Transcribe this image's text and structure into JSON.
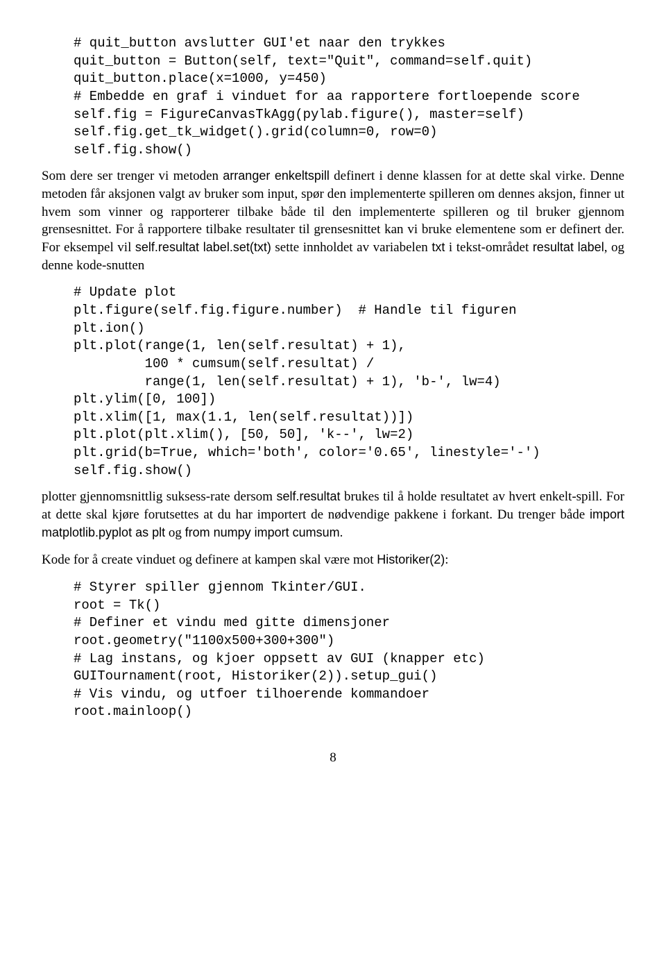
{
  "code1": "# quit_button avslutter GUI'et naar den trykkes\nquit_button = Button(self, text=\"Quit\", command=self.quit)\nquit_button.place(x=1000, y=450)\n# Embedde en graf i vinduet for aa rapportere fortloepende score\nself.fig = FigureCanvasTkAgg(pylab.figure(), master=self)\nself.fig.get_tk_widget().grid(column=0, row=0)\nself.fig.show()",
  "p1_a": "Som dere ser trenger vi metoden ",
  "p1_sf1": "arranger enkeltspill",
  "p1_b": " definert i denne klassen for at dette skal virke. Denne metoden får aksjonen valgt av bruker som input, spør den implementerte spilleren om dennes aksjon, finner ut hvem som vinner og rapporterer tilbake både til den implementerte spilleren og til bruker gjennom grensesnittet. For å rapportere tilbake resultater til grensesnittet kan vi bruke elementene som er definert der. For eksempel vil ",
  "p1_sf2": "self.resultat label.set(txt)",
  "p1_c": " sette innholdet av variabelen ",
  "p1_sf3": "txt",
  "p1_d": " i tekst-området ",
  "p1_sf4": "resultat label",
  "p1_e": ", og denne kode-snutten",
  "code2": "# Update plot\nplt.figure(self.fig.figure.number)  # Handle til figuren\nplt.ion()\nplt.plot(range(1, len(self.resultat) + 1),\n         100 * cumsum(self.resultat) /\n         range(1, len(self.resultat) + 1), 'b-', lw=4)\nplt.ylim([0, 100])\nplt.xlim([1, max(1.1, len(self.resultat))])\nplt.plot(plt.xlim(), [50, 50], 'k--', lw=2)\nplt.grid(b=True, which='both', color='0.65', linestyle='-')\nself.fig.show()",
  "p2_a": "plotter gjennomsnittlig suksess-rate dersom ",
  "p2_sf1": "self.resultat",
  "p2_b": " brukes til å holde resultatet av hvert enkelt-spill. For at dette skal kjøre forutsettes at du har importert de nødvendige pakkene i forkant. Du trenger både ",
  "p2_sf2": "import matplotlib.pyplot as plt",
  "p2_c": " og ",
  "p2_sf3": "from numpy import cumsum",
  "p2_d": ".",
  "p3_a": "Kode for å create vinduet og definere at kampen skal være mot ",
  "p3_sf1": "Historiker(2)",
  "p3_b": ":",
  "code3": "# Styrer spiller gjennom Tkinter/GUI.\nroot = Tk()\n# Definer et vindu med gitte dimensjoner\nroot.geometry(\"1100x500+300+300\")\n# Lag instans, og kjoer oppsett av GUI (knapper etc)\nGUITournament(root, Historiker(2)).setup_gui()\n# Vis vindu, og utfoer tilhoerende kommandoer\nroot.mainloop()",
  "page": "8"
}
